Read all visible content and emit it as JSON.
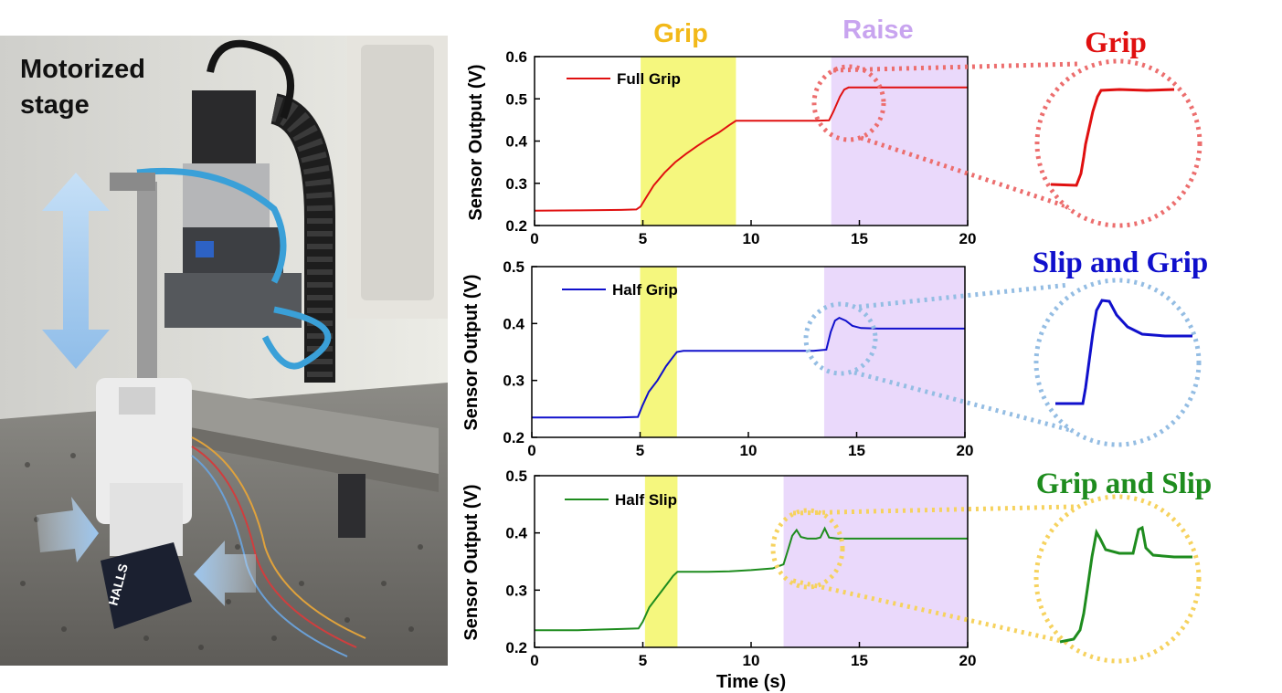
{
  "photo": {
    "label_line1": "Motorized",
    "label_line2": "stage"
  },
  "phase_labels": {
    "grip": "Grip",
    "raise": "Raise"
  },
  "colors": {
    "grip_band": "#f5f77e",
    "raise_band": "#ead9fb",
    "grip_label": "#f2b91a",
    "raise_label": "#c8a4ef",
    "full": "#e01010",
    "half_grip": "#1010cc",
    "half_slip": "#1e8c1e",
    "zoom_red": "#ec6e6e",
    "zoom_blue": "#94bde3",
    "zoom_yellow": "#f6d25e"
  },
  "zoom_titles": {
    "grip": "Grip",
    "slip_and_grip": "Slip and Grip",
    "grip_and_slip": "Grip and Slip"
  },
  "chart_data": [
    {
      "type": "line",
      "panel": "top",
      "ylabel": "Sensor Output (V)",
      "xlabel": "",
      "xlim": [
        0,
        20
      ],
      "ylim": [
        0.2,
        0.6
      ],
      "xticks": [
        "0",
        "5",
        "10",
        "15",
        "20"
      ],
      "yticks": [
        "0.2",
        "0.3",
        "0.4",
        "0.5",
        "0.6"
      ],
      "grip_region": [
        4.9,
        9.3
      ],
      "raise_region": [
        13.7,
        20
      ],
      "series": [
        {
          "name": "Full Grip",
          "color": "#e01010",
          "x": [
            0,
            2,
            4,
            4.7,
            4.9,
            5.2,
            5.5,
            6.0,
            6.5,
            7.0,
            7.5,
            8.0,
            8.5,
            9.0,
            9.3,
            10,
            11,
            12,
            13,
            13.6,
            13.8,
            14.1,
            14.3,
            14.5,
            15,
            16,
            17,
            18,
            19,
            20
          ],
          "y": [
            0.235,
            0.236,
            0.237,
            0.238,
            0.245,
            0.27,
            0.295,
            0.325,
            0.35,
            0.37,
            0.388,
            0.405,
            0.42,
            0.438,
            0.448,
            0.448,
            0.448,
            0.448,
            0.448,
            0.449,
            0.47,
            0.505,
            0.522,
            0.527,
            0.527,
            0.527,
            0.527,
            0.527,
            0.527,
            0.527
          ]
        }
      ]
    },
    {
      "type": "line",
      "panel": "middle",
      "ylabel": "Sensor Output (V)",
      "xlabel": "",
      "xlim": [
        0,
        20
      ],
      "ylim": [
        0.2,
        0.5
      ],
      "xticks": [
        "0",
        "5",
        "10",
        "15",
        "20"
      ],
      "yticks": [
        "0.2",
        "0.3",
        "0.4",
        "0.5"
      ],
      "grip_region": [
        5.0,
        6.7
      ],
      "raise_region": [
        13.5,
        20
      ],
      "series": [
        {
          "name": "Half Grip",
          "color": "#1010cc",
          "x": [
            0,
            2,
            4,
            4.9,
            5.1,
            5.4,
            5.8,
            6.2,
            6.5,
            6.7,
            7,
            8,
            9,
            10,
            11,
            12,
            13,
            13.6,
            13.8,
            14.0,
            14.2,
            14.5,
            14.8,
            15.2,
            16,
            17,
            18,
            19,
            20
          ],
          "y": [
            0.235,
            0.235,
            0.235,
            0.236,
            0.255,
            0.28,
            0.3,
            0.325,
            0.34,
            0.35,
            0.352,
            0.352,
            0.352,
            0.352,
            0.352,
            0.352,
            0.352,
            0.354,
            0.385,
            0.405,
            0.41,
            0.405,
            0.396,
            0.392,
            0.391,
            0.391,
            0.391,
            0.391,
            0.391
          ]
        }
      ]
    },
    {
      "type": "line",
      "panel": "bottom",
      "ylabel": "Sensor Output (V)",
      "xlabel": "Time (s)",
      "xlim": [
        0,
        20
      ],
      "ylim": [
        0.2,
        0.5
      ],
      "xticks": [
        "0",
        "5",
        "10",
        "15",
        "20"
      ],
      "yticks": [
        "0.2",
        "0.3",
        "0.4",
        "0.5"
      ],
      "grip_region": [
        5.1,
        6.6
      ],
      "raise_region": [
        11.5,
        20
      ],
      "series": [
        {
          "name": "Half Slip",
          "color": "#1e8c1e",
          "x": [
            0,
            2,
            4,
            4.8,
            5.0,
            5.3,
            5.7,
            6.1,
            6.4,
            6.6,
            7,
            8,
            9,
            10,
            11,
            11.5,
            11.7,
            11.9,
            12.1,
            12.3,
            12.6,
            13,
            13.2,
            13.4,
            13.6,
            14,
            15,
            16,
            17,
            18,
            19,
            20
          ],
          "y": [
            0.23,
            0.23,
            0.232,
            0.233,
            0.245,
            0.27,
            0.29,
            0.31,
            0.325,
            0.332,
            0.332,
            0.332,
            0.333,
            0.335,
            0.338,
            0.345,
            0.37,
            0.395,
            0.405,
            0.393,
            0.39,
            0.39,
            0.392,
            0.408,
            0.392,
            0.39,
            0.39,
            0.39,
            0.39,
            0.39,
            0.39,
            0.39
          ]
        }
      ]
    }
  ]
}
